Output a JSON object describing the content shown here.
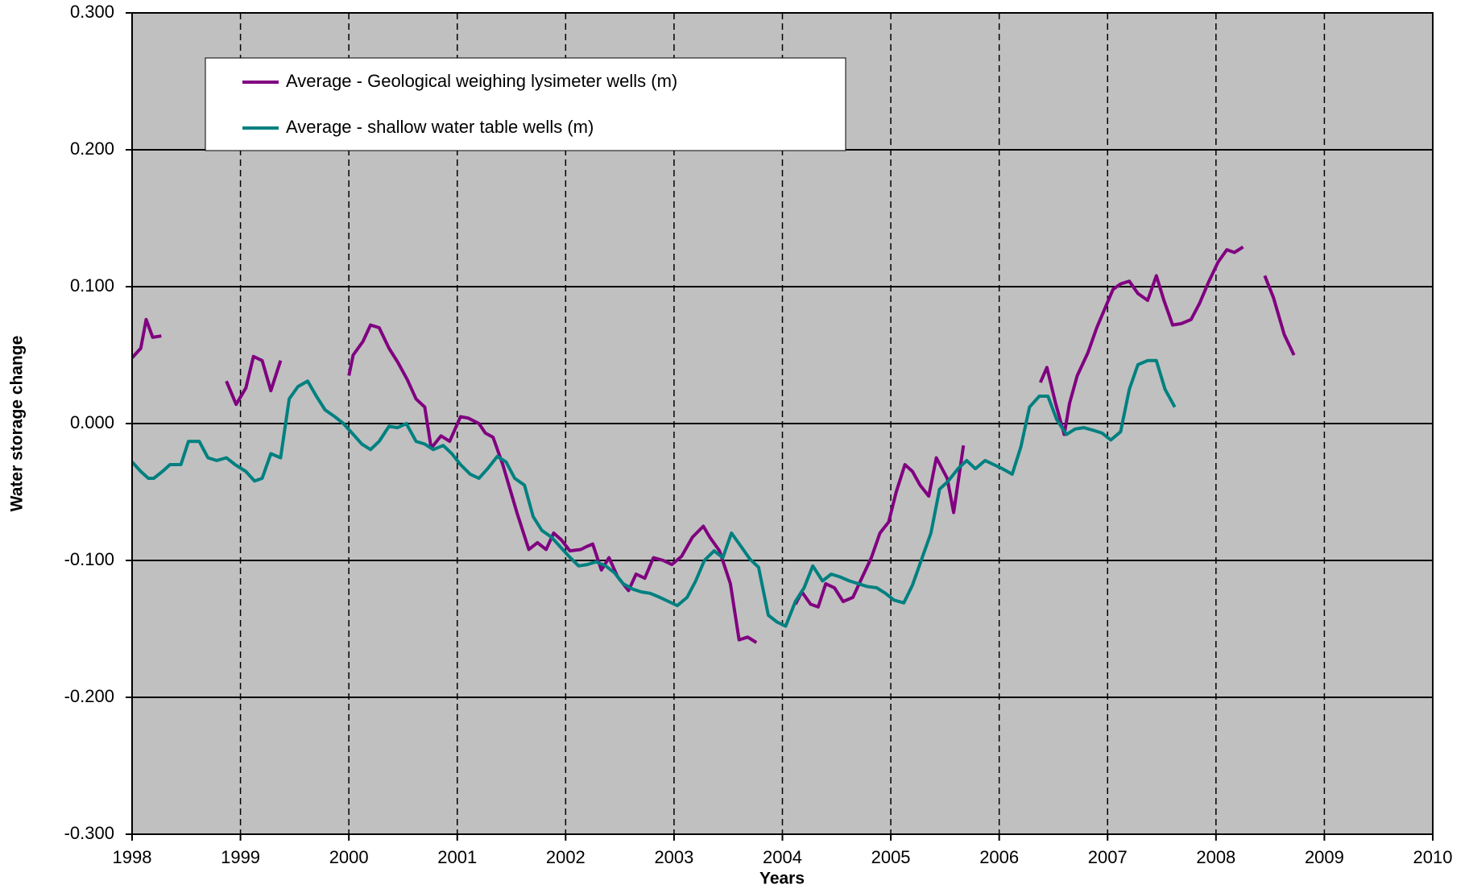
{
  "chart_data": {
    "type": "line",
    "x_label": "Years",
    "y_label": "Water storage change",
    "xlim": [
      1998,
      2010
    ],
    "xticks": [
      1998,
      1999,
      2000,
      2001,
      2002,
      2003,
      2004,
      2005,
      2006,
      2007,
      2008,
      2009,
      2010
    ],
    "ylim": [
      -0.3,
      0.3
    ],
    "yticks": [
      {
        "value": -0.3,
        "label": "-0.300"
      },
      {
        "value": -0.2,
        "label": "-0.200"
      },
      {
        "value": -0.1,
        "label": "-0.100"
      },
      {
        "value": 0,
        "label": "0.000"
      },
      {
        "value": 0.1,
        "label": "0.100"
      },
      {
        "value": 0.2,
        "label": "0.200"
      },
      {
        "value": 0.3,
        "label": "0.300"
      }
    ],
    "grid": true,
    "legend": "upper left",
    "series": [
      {
        "name": "Average - Geological weighing lysimeter wells (m)",
        "color": "#800080",
        "x": [
          1998.0,
          1998.08,
          1998.13,
          1998.19,
          1998.27,
          1998.6,
          1998.87,
          1998.96,
          1999.05,
          1999.12,
          1999.2,
          1999.28,
          1999.37,
          1999.7,
          2000.0,
          2000.04,
          2000.13,
          2000.2,
          2000.28,
          2000.37,
          2000.45,
          2000.54,
          2000.62,
          2000.7,
          2000.76,
          2000.85,
          2000.93,
          2001.03,
          2001.1,
          2001.2,
          2001.26,
          2001.33,
          2001.42,
          2001.55,
          2001.66,
          2001.74,
          2001.82,
          2001.89,
          2001.96,
          2002.04,
          2002.14,
          2002.19,
          2002.25,
          2002.33,
          2002.4,
          2002.48,
          2002.58,
          2002.65,
          2002.73,
          2002.81,
          2002.9,
          2002.98,
          2003.07,
          2003.17,
          2003.27,
          2003.33,
          2003.42,
          2003.52,
          2003.6,
          2003.68,
          2003.76,
          2003.95,
          2004.12,
          2004.18,
          2004.26,
          2004.33,
          2004.4,
          2004.48,
          2004.56,
          2004.65,
          2004.72,
          2004.82,
          2004.9,
          2004.98,
          2005.05,
          2005.13,
          2005.2,
          2005.27,
          2005.35,
          2005.42,
          2005.52,
          2005.58,
          2005.67,
          2006.0,
          2006.38,
          2006.44,
          2006.52,
          2006.6,
          2006.65,
          2006.72,
          2006.82,
          2006.9,
          2006.98,
          2007.05,
          2007.12,
          2007.2,
          2007.28,
          2007.37,
          2007.45,
          2007.52,
          2007.6,
          2007.68,
          2007.77,
          2007.85,
          2007.93,
          2008.02,
          2008.1,
          2008.17,
          2008.25,
          2008.35,
          2008.45,
          2008.53,
          2008.63,
          2008.72
        ],
        "values": [
          0.048,
          0.055,
          0.076,
          0.063,
          0.064,
          null,
          0.031,
          0.014,
          0.026,
          0.049,
          0.046,
          0.024,
          0.046,
          null,
          0.035,
          0.05,
          0.06,
          0.072,
          0.07,
          0.055,
          0.045,
          0.032,
          0.018,
          0.012,
          -0.018,
          -0.009,
          -0.013,
          0.005,
          0.004,
          0.0,
          -0.007,
          -0.01,
          -0.03,
          -0.065,
          -0.092,
          -0.087,
          -0.092,
          -0.08,
          -0.085,
          -0.093,
          -0.092,
          -0.09,
          -0.088,
          -0.107,
          -0.098,
          -0.112,
          -0.122,
          -0.11,
          -0.113,
          -0.098,
          -0.1,
          -0.103,
          -0.097,
          -0.083,
          -0.075,
          -0.083,
          -0.093,
          -0.117,
          -0.158,
          -0.156,
          -0.16,
          null,
          -0.132,
          -0.123,
          -0.132,
          -0.134,
          -0.117,
          -0.12,
          -0.13,
          -0.127,
          -0.115,
          -0.098,
          -0.08,
          -0.072,
          -0.05,
          -0.03,
          -0.035,
          -0.045,
          -0.053,
          -0.025,
          -0.04,
          -0.065,
          -0.016,
          null,
          0.03,
          0.041,
          0.015,
          -0.008,
          0.015,
          0.035,
          0.052,
          0.07,
          0.085,
          0.098,
          0.102,
          0.104,
          0.095,
          0.09,
          0.108,
          0.09,
          0.072,
          0.073,
          0.076,
          0.088,
          0.103,
          0.118,
          0.127,
          0.125,
          0.129,
          null,
          0.108,
          0.092,
          0.065,
          0.05
        ]
      },
      {
        "name": "Average - shallow water table wells (m)",
        "color": "#008080",
        "x": [
          1998.0,
          1998.08,
          1998.15,
          1998.2,
          1998.28,
          1998.35,
          1998.45,
          1998.52,
          1998.62,
          1998.7,
          1998.78,
          1998.87,
          1998.95,
          1999.05,
          1999.13,
          1999.2,
          1999.28,
          1999.37,
          1999.45,
          1999.53,
          1999.62,
          1999.7,
          1999.78,
          1999.87,
          1999.95,
          2000.03,
          2000.12,
          2000.2,
          2000.28,
          2000.37,
          2000.45,
          2000.53,
          2000.62,
          2000.7,
          2000.78,
          2000.87,
          2000.95,
          2001.03,
          2001.12,
          2001.2,
          2001.28,
          2001.37,
          2001.45,
          2001.53,
          2001.62,
          2001.7,
          2001.78,
          2001.87,
          2001.95,
          2002.03,
          2002.12,
          2002.2,
          2002.28,
          2002.37,
          2002.45,
          2002.53,
          2002.62,
          2002.7,
          2002.78,
          2002.87,
          2002.95,
          2003.03,
          2003.12,
          2003.2,
          2003.28,
          2003.37,
          2003.45,
          2003.53,
          2003.62,
          2003.7,
          2003.78,
          2003.87,
          2003.95,
          2004.03,
          2004.12,
          2004.2,
          2004.28,
          2004.37,
          2004.45,
          2004.53,
          2004.62,
          2004.7,
          2004.78,
          2004.87,
          2004.95,
          2005.03,
          2005.12,
          2005.2,
          2005.28,
          2005.37,
          2005.45,
          2005.53,
          2005.62,
          2005.7,
          2005.78,
          2005.87,
          2005.95,
          2006.03,
          2006.12,
          2006.2,
          2006.28,
          2006.37,
          2006.45,
          2006.53,
          2006.62,
          2006.7,
          2006.78,
          2006.87,
          2006.95,
          2007.03,
          2007.12,
          2007.2,
          2007.28,
          2007.37,
          2007.45,
          2007.53,
          2007.62
        ],
        "values": [
          -0.028,
          -0.035,
          -0.04,
          -0.04,
          -0.035,
          -0.03,
          -0.03,
          -0.013,
          -0.013,
          -0.025,
          -0.027,
          -0.025,
          -0.03,
          -0.035,
          -0.042,
          -0.04,
          -0.022,
          -0.025,
          0.018,
          0.027,
          0.031,
          0.02,
          0.01,
          0.005,
          0.0,
          -0.007,
          -0.015,
          -0.019,
          -0.013,
          -0.002,
          -0.003,
          0.0,
          -0.013,
          -0.015,
          -0.019,
          -0.016,
          -0.022,
          -0.03,
          -0.037,
          -0.04,
          -0.033,
          -0.024,
          -0.028,
          -0.04,
          -0.045,
          -0.068,
          -0.078,
          -0.083,
          -0.09,
          -0.097,
          -0.104,
          -0.103,
          -0.101,
          -0.104,
          -0.109,
          -0.117,
          -0.121,
          -0.123,
          -0.124,
          -0.127,
          -0.13,
          -0.133,
          -0.127,
          -0.115,
          -0.1,
          -0.093,
          -0.098,
          -0.08,
          -0.09,
          -0.099,
          -0.105,
          -0.14,
          -0.145,
          -0.148,
          -0.13,
          -0.12,
          -0.104,
          -0.115,
          -0.11,
          -0.112,
          -0.115,
          -0.117,
          -0.119,
          -0.12,
          -0.124,
          -0.129,
          -0.131,
          -0.118,
          -0.1,
          -0.08,
          -0.048,
          -0.042,
          -0.033,
          -0.027,
          -0.033,
          -0.027,
          -0.03,
          -0.033,
          -0.037,
          -0.017,
          0.012,
          0.02,
          0.02,
          0.003,
          -0.008,
          -0.004,
          -0.003,
          -0.005,
          -0.007,
          -0.012,
          -0.006,
          0.025,
          0.043,
          0.046,
          0.046,
          0.025,
          0.012
        ]
      }
    ]
  }
}
